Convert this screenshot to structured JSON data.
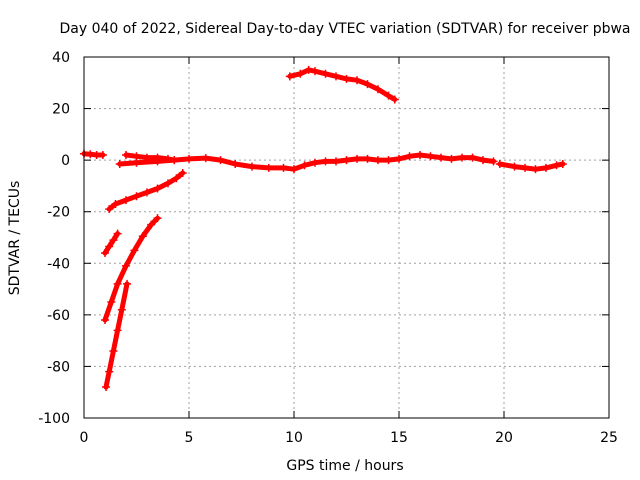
{
  "chart_data": {
    "type": "scatter",
    "title": "Day 040 of 2022, Sidereal Day-to-day VTEC variation (SDTVAR) for receiver pbwa",
    "xlabel": "GPS time / hours",
    "ylabel": "SDTVAR / TECUs",
    "xlim": [
      0,
      25
    ],
    "ylim": [
      -100,
      40
    ],
    "x_ticks": [
      0,
      5,
      10,
      15,
      20,
      25
    ],
    "x_tick_labels": [
      "0",
      "5",
      "10",
      "15",
      "20",
      "25"
    ],
    "y_ticks": [
      -100,
      -80,
      -60,
      -40,
      -20,
      0,
      20,
      40
    ],
    "y_tick_labels": [
      "-100",
      "-80",
      "-60",
      "-40",
      "-20",
      "0",
      "20",
      "40"
    ],
    "grid": true,
    "legend": "none",
    "marker": "plus",
    "color": "#ff0000",
    "series": [
      {
        "name": "arc-0",
        "x": [
          0.0,
          0.3,
          0.6,
          0.9
        ],
        "y": [
          2.5,
          2.3,
          2.0,
          2.0
        ]
      },
      {
        "name": "arc-1",
        "x": [
          1.7,
          2.5,
          3.5,
          4.3,
          5.0,
          5.8,
          6.5,
          7.2,
          8.0,
          8.8,
          9.5,
          10.0,
          10.5,
          11.0,
          11.5,
          12.0,
          12.5,
          13.0,
          13.5,
          14.0,
          14.5,
          15.0,
          15.5,
          16.0,
          16.5,
          17.0,
          17.5,
          18.0,
          18.5,
          19.0,
          19.5
        ],
        "y": [
          -1.5,
          -1.0,
          -0.5,
          0.0,
          0.5,
          0.8,
          0.0,
          -1.5,
          -2.5,
          -3.0,
          -3.0,
          -3.5,
          -2.0,
          -1.0,
          -0.5,
          -0.5,
          0.0,
          0.5,
          0.5,
          0.0,
          0.0,
          0.5,
          1.5,
          2.0,
          1.5,
          1.0,
          0.5,
          1.0,
          1.0,
          0.0,
          -0.5
        ]
      },
      {
        "name": "arc-2",
        "x": [
          2.0,
          2.5,
          3.0,
          3.5,
          4.0,
          4.3
        ],
        "y": [
          2.0,
          1.5,
          1.0,
          1.0,
          0.5,
          0.0
        ]
      },
      {
        "name": "arc-3",
        "x": [
          19.8,
          20.5,
          21.0,
          21.5,
          22.0,
          22.5,
          22.8
        ],
        "y": [
          -1.5,
          -2.5,
          -3.0,
          -3.5,
          -3.0,
          -2.0,
          -1.5
        ]
      },
      {
        "name": "arc-4",
        "x": [
          9.8,
          10.3,
          10.7,
          11.0,
          11.5,
          12.0,
          12.5,
          13.0,
          13.5,
          14.0,
          14.5,
          14.8
        ],
        "y": [
          32.5,
          33.5,
          35.0,
          34.5,
          33.5,
          32.5,
          31.5,
          31.0,
          29.5,
          27.5,
          25.0,
          23.5
        ]
      },
      {
        "name": "arc-5",
        "x": [
          1.2,
          1.5,
          2.0,
          2.5,
          3.0,
          3.5,
          4.0,
          4.4,
          4.7
        ],
        "y": [
          -19.0,
          -17.0,
          -15.5,
          -14.0,
          -12.5,
          -11.0,
          -9.0,
          -7.0,
          -5.0
        ]
      },
      {
        "name": "arc-6",
        "x": [
          1.0,
          1.2,
          1.4,
          1.6
        ],
        "y": [
          -36.0,
          -33.5,
          -31.0,
          -28.5
        ]
      },
      {
        "name": "arc-7",
        "x": [
          1.0,
          1.3,
          1.6,
          2.0,
          2.4,
          2.8,
          3.2,
          3.5
        ],
        "y": [
          -62.0,
          -55.0,
          -48.0,
          -41.0,
          -35.0,
          -29.5,
          -25.0,
          -22.5
        ]
      },
      {
        "name": "arc-8",
        "x": [
          1.05,
          1.2,
          1.4,
          1.6,
          1.8,
          2.05
        ],
        "y": [
          -88.0,
          -82.0,
          -74.0,
          -66.0,
          -58.0,
          -48.0
        ]
      }
    ]
  }
}
